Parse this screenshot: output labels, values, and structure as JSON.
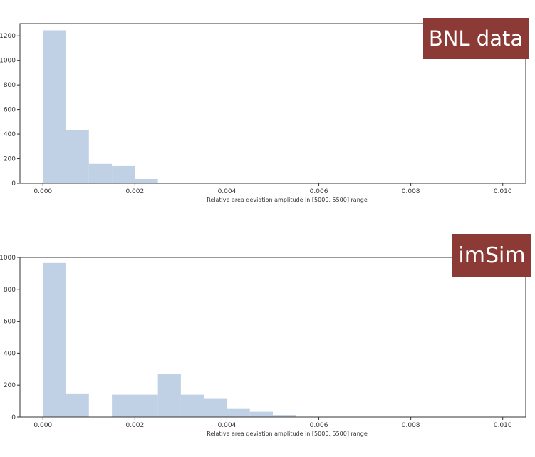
{
  "colors": {
    "bar": "#c0d1e5",
    "frame": "#333333",
    "badge_bg": "#8b3a36",
    "badge_text": "#ffffff"
  },
  "chart_data": [
    {
      "type": "bar",
      "subtype": "histogram",
      "badge": "BNL data",
      "xlabel": "Relative area deviation amplitude in [5000, 5500] range",
      "xlim": [
        -0.0005,
        0.0105
      ],
      "ylim": [
        0,
        1300
      ],
      "bin_width": 0.0005,
      "bin_starts": [
        0.0,
        0.0005,
        0.001,
        0.0015,
        0.002
      ],
      "values": [
        1245,
        435,
        158,
        140,
        35
      ],
      "x_ticks": [
        "0.000",
        "0.002",
        "0.004",
        "0.006",
        "0.008",
        "0.010"
      ],
      "x_tick_values": [
        0.0,
        0.002,
        0.004,
        0.006,
        0.008,
        0.01
      ],
      "y_ticks": [
        "0",
        "200",
        "400",
        "600",
        "800",
        "1000",
        "1200"
      ],
      "y_tick_values": [
        0,
        200,
        400,
        600,
        800,
        1000,
        1200
      ]
    },
    {
      "type": "bar",
      "subtype": "histogram",
      "badge": "imSim",
      "xlabel": "Relative area deviation amplitude in [5000, 5500] range",
      "xlim": [
        -0.0005,
        0.0105
      ],
      "ylim": [
        0,
        1000
      ],
      "bin_width": 0.0005,
      "bin_starts": [
        0.0,
        0.0005,
        0.0015,
        0.002,
        0.0025,
        0.003,
        0.0035,
        0.004,
        0.0045,
        0.005
      ],
      "values": [
        965,
        148,
        140,
        140,
        268,
        140,
        118,
        55,
        33,
        13
      ],
      "x_ticks": [
        "0.000",
        "0.002",
        "0.004",
        "0.006",
        "0.008",
        "0.010"
      ],
      "x_tick_values": [
        0.0,
        0.002,
        0.004,
        0.006,
        0.008,
        0.01
      ],
      "y_ticks": [
        "0",
        "200",
        "400",
        "600",
        "800",
        "1000"
      ],
      "y_tick_values": [
        0,
        200,
        400,
        600,
        800,
        1000
      ]
    }
  ]
}
